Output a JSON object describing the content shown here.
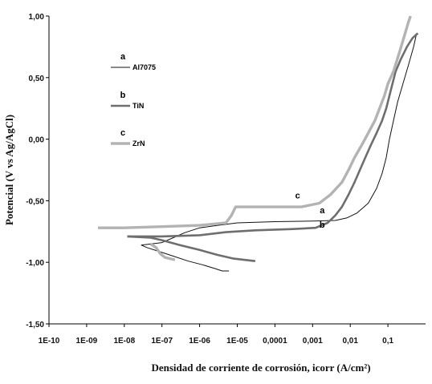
{
  "chart_data": {
    "type": "line",
    "title": "",
    "xlabel": "Densidad de corriente de corrosión, icorr (A/cm²)",
    "ylabel": "Potencial (V vs Ag/AgCl)",
    "x_scale": "log",
    "xlim": [
      1e-10,
      1
    ],
    "ylim": [
      -1.5,
      1.0
    ],
    "x_ticks": [
      "1E-10",
      "1E-09",
      "1E-08",
      "1E-07",
      "1E-06",
      "1E-05",
      "0,0001",
      "0,001",
      "0,01",
      "0,1"
    ],
    "y_ticks": [
      "1,00",
      "0,50",
      "0,00",
      "-0,50",
      "-1,00",
      "-1,50"
    ],
    "grid": false,
    "legend_position": "left",
    "series": [
      {
        "letter": "a",
        "name": "Al7075",
        "color": "#111111",
        "label_at": [
          0.0018,
          -0.6
        ],
        "cathodic": [
          [
            2.8e-08,
            -0.86
          ],
          [
            4e-08,
            -0.88
          ],
          [
            8e-08,
            -0.91
          ],
          [
            2e-07,
            -0.95
          ],
          [
            5e-07,
            -0.99
          ],
          [
            1.2e-06,
            -1.02
          ],
          [
            2.5e-06,
            -1.05
          ],
          [
            4e-06,
            -1.07
          ],
          [
            6e-06,
            -1.07
          ]
        ],
        "anodic": [
          [
            2.8e-08,
            -0.86
          ],
          [
            1e-07,
            -0.84
          ],
          [
            2e-07,
            -0.8
          ],
          [
            4e-07,
            -0.76
          ],
          [
            1e-06,
            -0.72
          ],
          [
            3e-06,
            -0.7
          ],
          [
            1e-05,
            -0.68
          ],
          [
            0.0001,
            -0.67
          ],
          [
            0.001,
            -0.665
          ],
          [
            0.004,
            -0.66
          ],
          [
            0.008,
            -0.64
          ],
          [
            0.015,
            -0.6
          ],
          [
            0.03,
            -0.52
          ],
          [
            0.05,
            -0.4
          ],
          [
            0.07,
            -0.28
          ],
          [
            0.09,
            -0.15
          ],
          [
            0.11,
            0.0
          ],
          [
            0.14,
            0.15
          ],
          [
            0.18,
            0.3
          ],
          [
            0.25,
            0.45
          ],
          [
            0.35,
            0.6
          ],
          [
            0.48,
            0.75
          ],
          [
            0.58,
            0.86
          ]
        ]
      },
      {
        "letter": "b",
        "name": "TiN",
        "color": "#6e6e6e",
        "label_at": [
          0.0018,
          -0.72
        ],
        "cathodic": [
          [
            1.2e-08,
            -0.79
          ],
          [
            5e-08,
            -0.8
          ],
          [
            1e-07,
            -0.82
          ],
          [
            3e-07,
            -0.86
          ],
          [
            1e-06,
            -0.9
          ],
          [
            3e-06,
            -0.94
          ],
          [
            8e-06,
            -0.97
          ],
          [
            1.5e-05,
            -0.98
          ],
          [
            3e-05,
            -0.99
          ]
        ],
        "anodic": [
          [
            1.2e-08,
            -0.79
          ],
          [
            1e-07,
            -0.79
          ],
          [
            1e-06,
            -0.78
          ],
          [
            5e-06,
            -0.755
          ],
          [
            3e-05,
            -0.74
          ],
          [
            0.0003,
            -0.73
          ],
          [
            0.0012,
            -0.72
          ],
          [
            0.0025,
            -0.68
          ],
          [
            0.004,
            -0.62
          ],
          [
            0.006,
            -0.55
          ],
          [
            0.009,
            -0.45
          ],
          [
            0.013,
            -0.35
          ],
          [
            0.018,
            -0.25
          ],
          [
            0.025,
            -0.15
          ],
          [
            0.035,
            -0.05
          ],
          [
            0.05,
            0.05
          ],
          [
            0.07,
            0.15
          ],
          [
            0.09,
            0.25
          ],
          [
            0.12,
            0.4
          ],
          [
            0.16,
            0.55
          ],
          [
            0.22,
            0.65
          ],
          [
            0.32,
            0.75
          ],
          [
            0.45,
            0.82
          ],
          [
            0.62,
            0.86
          ]
        ]
      },
      {
        "letter": "c",
        "name": "ZrN",
        "color": "#b3b3b3",
        "label_at": [
          0.0004,
          -0.48
        ],
        "cathodic": [
          [
            5e-08,
            -0.85
          ],
          [
            7e-08,
            -0.88
          ],
          [
            9e-08,
            -0.93
          ],
          [
            1.2e-07,
            -0.96
          ],
          [
            2.2e-07,
            -0.98
          ]
        ],
        "anodic": [
          [
            2e-09,
            -0.72
          ],
          [
            1e-08,
            -0.72
          ],
          [
            1e-07,
            -0.71
          ],
          [
            1e-06,
            -0.7
          ],
          [
            5e-06,
            -0.68
          ],
          [
            7e-06,
            -0.62
          ],
          [
            9e-06,
            -0.55
          ],
          [
            5e-05,
            -0.55
          ],
          [
            0.0005,
            -0.55
          ],
          [
            0.0015,
            -0.52
          ],
          [
            0.003,
            -0.45
          ],
          [
            0.006,
            -0.35
          ],
          [
            0.009,
            -0.25
          ],
          [
            0.013,
            -0.15
          ],
          [
            0.02,
            -0.05
          ],
          [
            0.03,
            0.05
          ],
          [
            0.045,
            0.15
          ],
          [
            0.06,
            0.25
          ],
          [
            0.08,
            0.35
          ],
          [
            0.1,
            0.45
          ],
          [
            0.14,
            0.55
          ],
          [
            0.2,
            0.7
          ],
          [
            0.28,
            0.85
          ],
          [
            0.35,
            0.95
          ],
          [
            0.4,
            1.0
          ]
        ]
      }
    ]
  }
}
